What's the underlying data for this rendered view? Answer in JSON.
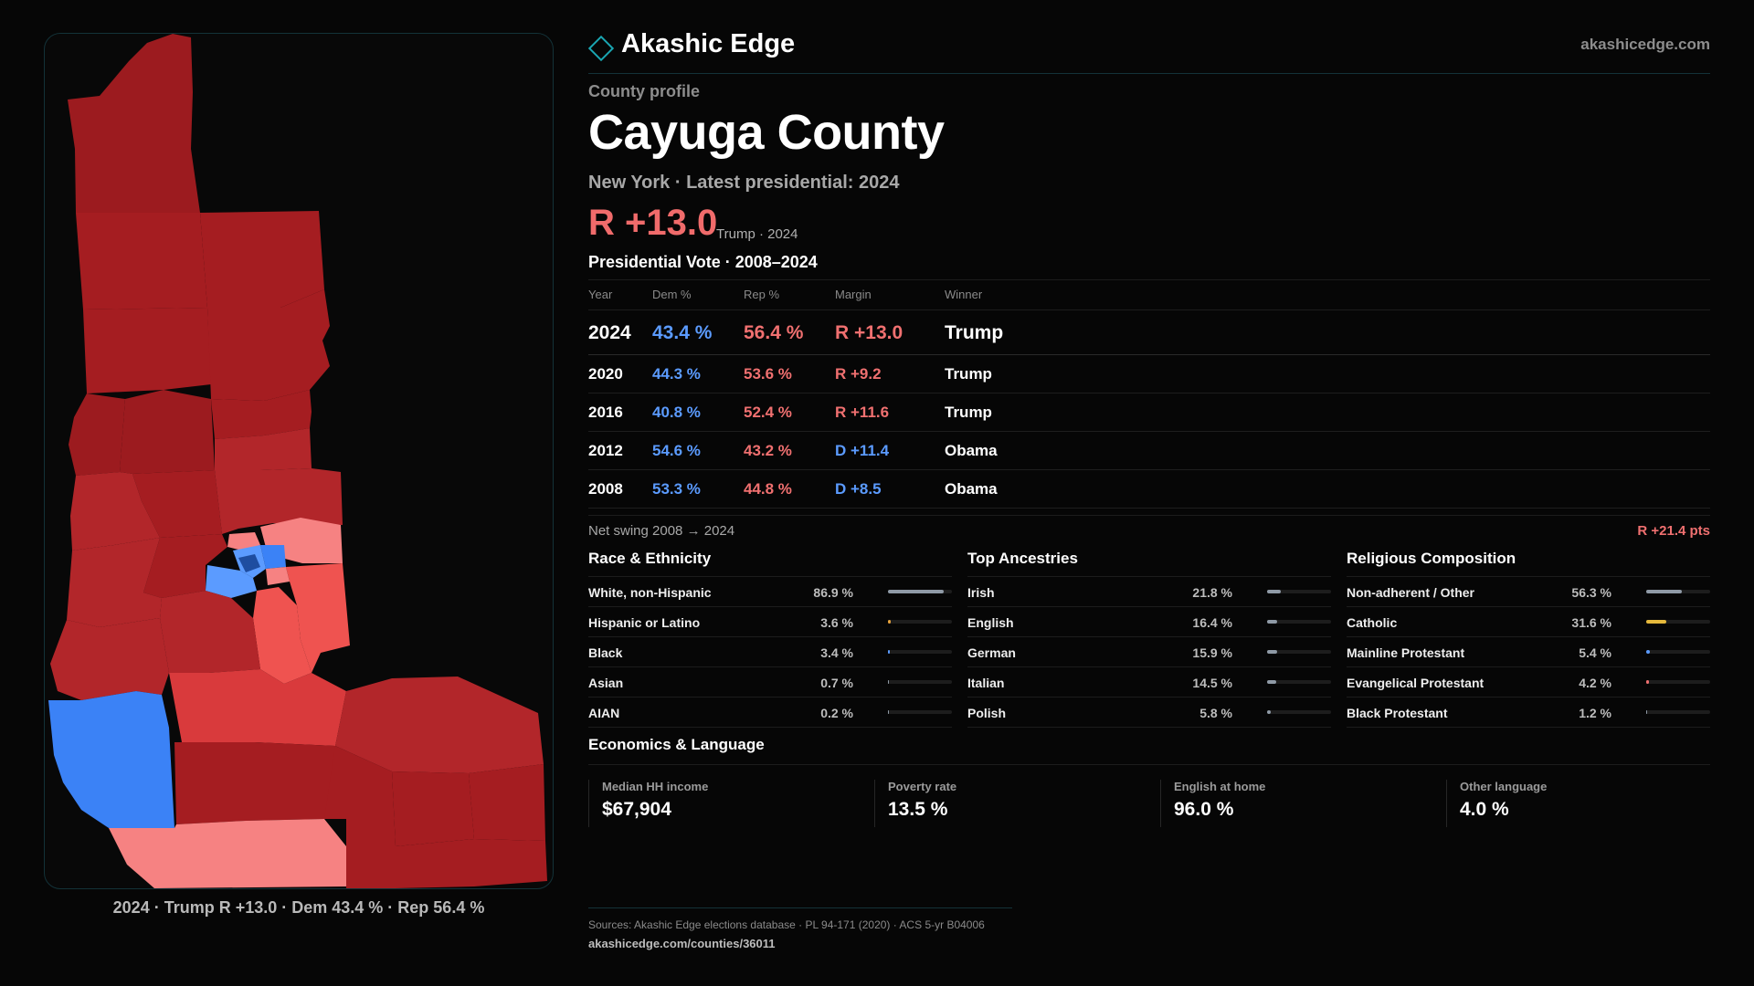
{
  "map": {
    "caption": "2024 · Trump R +13.0 · Dem 43.4 % · Rep 56.4 %",
    "colors": {
      "dark_red": "#9c1b1f",
      "red": "#b2262a",
      "mid_red": "#d93a3c",
      "light_red": "#ef5350",
      "pink": "#f68282",
      "blue": "#3b82f6",
      "light_blue": "#5b9bff",
      "navy": "#1e4da0"
    }
  },
  "brand": {
    "name": "Akashic Edge",
    "site": "akashicedge.com",
    "accent": "#1aa6b2"
  },
  "profile": {
    "eyebrow": "County profile",
    "title": "Cayuga County",
    "subtitle": "New York · Latest presidential: 2024",
    "margin": "R +13.0",
    "margin_note": "Trump · 2024",
    "table_title": "Presidential Vote · 2008–2024"
  },
  "vote_table": {
    "headers": {
      "year": "Year",
      "dem": "Dem %",
      "rep": "Rep %",
      "margin": "Margin",
      "winner": "Winner"
    },
    "rows": [
      {
        "year": "2024",
        "dem": "43.4 %",
        "rep": "56.4 %",
        "margin": "R +13.0",
        "winner": "Trump",
        "party": "r"
      },
      {
        "year": "2020",
        "dem": "44.3 %",
        "rep": "53.6 %",
        "margin": "R +9.2",
        "winner": "Trump",
        "party": "r"
      },
      {
        "year": "2016",
        "dem": "40.8 %",
        "rep": "52.4 %",
        "margin": "R +11.6",
        "winner": "Trump",
        "party": "r"
      },
      {
        "year": "2012",
        "dem": "54.6 %",
        "rep": "43.2 %",
        "margin": "D +11.4",
        "winner": "Obama",
        "party": "d"
      },
      {
        "year": "2008",
        "dem": "53.3 %",
        "rep": "44.8 %",
        "margin": "D +8.5",
        "winner": "Obama",
        "party": "d"
      }
    ]
  },
  "swing": {
    "label": "Net swing 2008 → 2024",
    "value": "R +21.4 pts"
  },
  "race": {
    "title": "Race & Ethnicity",
    "items": [
      {
        "label": "White, non-Hispanic",
        "pct": "86.9 %",
        "value": 86.9,
        "color": "#8f9aa6"
      },
      {
        "label": "Hispanic or Latino",
        "pct": "3.6 %",
        "value": 3.6,
        "color": "#e6a23c"
      },
      {
        "label": "Black",
        "pct": "3.4 %",
        "value": 3.4,
        "color": "#5b9bff"
      },
      {
        "label": "Asian",
        "pct": "0.7 %",
        "value": 0.7,
        "color": "#8f9aa6"
      },
      {
        "label": "AIAN",
        "pct": "0.2 %",
        "value": 0.2,
        "color": "#8f9aa6"
      }
    ]
  },
  "ancestries": {
    "title": "Top Ancestries",
    "items": [
      {
        "label": "Irish",
        "pct": "21.8 %",
        "value": 21.8,
        "color": "#8f9aa6"
      },
      {
        "label": "English",
        "pct": "16.4 %",
        "value": 16.4,
        "color": "#8f9aa6"
      },
      {
        "label": "German",
        "pct": "15.9 %",
        "value": 15.9,
        "color": "#8f9aa6"
      },
      {
        "label": "Italian",
        "pct": "14.5 %",
        "value": 14.5,
        "color": "#8f9aa6"
      },
      {
        "label": "Polish",
        "pct": "5.8 %",
        "value": 5.8,
        "color": "#8f9aa6"
      }
    ]
  },
  "religion": {
    "title": "Religious Composition",
    "items": [
      {
        "label": "Non-adherent / Other",
        "pct": "56.3 %",
        "value": 56.3,
        "color": "#8f9aa6"
      },
      {
        "label": "Catholic",
        "pct": "31.6 %",
        "value": 31.6,
        "color": "#e6b93c"
      },
      {
        "label": "Mainline Protestant",
        "pct": "5.4 %",
        "value": 5.4,
        "color": "#5b9bff"
      },
      {
        "label": "Evangelical Protestant",
        "pct": "4.2 %",
        "value": 4.2,
        "color": "#f07070"
      },
      {
        "label": "Black Protestant",
        "pct": "1.2 %",
        "value": 1.2,
        "color": "#8f9aa6"
      }
    ]
  },
  "economics": {
    "title": "Economics & Language",
    "items": [
      {
        "label": "Median HH income",
        "value": "$67,904"
      },
      {
        "label": "Poverty rate",
        "value": "13.5 %"
      },
      {
        "label": "English at home",
        "value": "96.0 %"
      },
      {
        "label": "Other language",
        "value": "4.0 %"
      }
    ]
  },
  "footer": {
    "sources": "Sources: Akashic Edge elections database · PL 94-171 (2020) · ACS 5-yr B04006",
    "url": "akashicedge.com/counties/36011"
  }
}
